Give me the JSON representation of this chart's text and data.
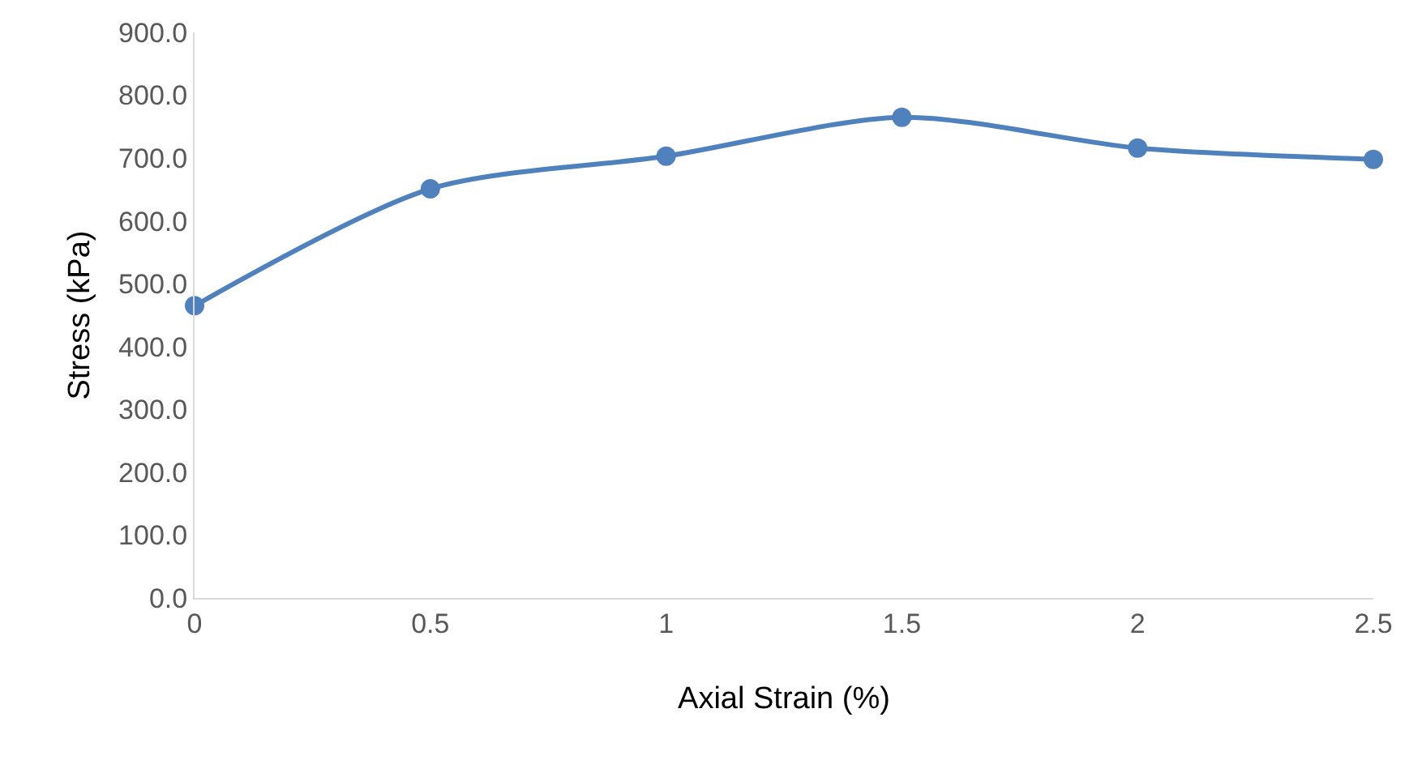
{
  "chart_data": {
    "type": "line",
    "xlabel": "Axial Strain (%)",
    "ylabel": "Stress (kPa)",
    "x": [
      0,
      0.5,
      1,
      1.5,
      2,
      2.5
    ],
    "series": [
      {
        "color": "#4f81bd",
        "values": [
          465,
          651,
          703,
          765,
          716,
          698
        ]
      }
    ],
    "xlim": [
      0,
      2.5
    ],
    "xticks": [
      0,
      0.5,
      1,
      1.5,
      2,
      2.5
    ],
    "ylim": [
      0,
      900
    ],
    "yticks": [
      {
        "value": 0,
        "label": "0.0"
      },
      {
        "value": 100,
        "label": "100.0"
      },
      {
        "value": 200,
        "label": "200.0"
      },
      {
        "value": 300,
        "label": "300.0"
      },
      {
        "value": 400,
        "label": "400.0"
      },
      {
        "value": 500,
        "label": "500.0"
      },
      {
        "value": 600,
        "label": "600.0"
      },
      {
        "value": 700,
        "label": "700.0"
      },
      {
        "value": 800,
        "label": "800.0"
      },
      {
        "value": 900,
        "label": "900.0"
      }
    ],
    "marker": "circle",
    "line_style": "solid"
  }
}
